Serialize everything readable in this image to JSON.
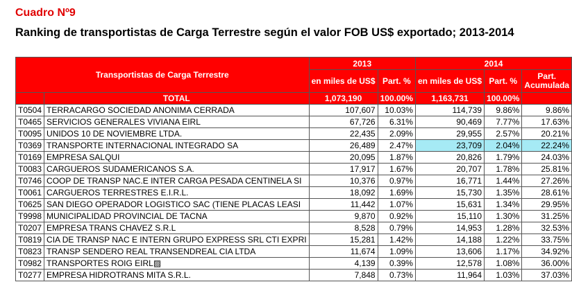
{
  "title": "Cuadro Nº9",
  "subtitle": "Ranking de transportistas de Carga Terrestre según el valor FOB US$ exportado; 2013-2014",
  "header": {
    "col_main": "Transportistas de Carga Terrestre",
    "year1": "2013",
    "year2": "2014",
    "value": "en miles de US$",
    "part": "Part. %",
    "acum": "Part. Acumulada"
  },
  "total": {
    "label": "TOTAL",
    "v2013": "1,073,190",
    "p2013": "100.00%",
    "v2014": "1,163,731",
    "p2014": "100.00%"
  },
  "rows": [
    [
      "T0504",
      "TERRACARGO SOCIEDAD ANONIMA CERRADA",
      "107,607",
      "10.03%",
      "114,739",
      "9.86%",
      "9.86%"
    ],
    [
      "T0465",
      "SERVICIOS GENERALES VIVIANA EIRL",
      "67,726",
      "6.31%",
      "90,469",
      "7.77%",
      "17.63%"
    ],
    [
      "T0095",
      "UNIDOS 10 DE NOVIEMBRE LTDA.",
      "22,435",
      "2.09%",
      "29,955",
      "2.57%",
      "20.21%"
    ],
    [
      "T0369",
      "TRANSPORTE INTERNACIONAL INTEGRADO SA",
      "26,489",
      "2.47%",
      "23,709",
      "2.04%",
      "22.24%"
    ],
    [
      "T0169",
      "EMPRESA SALQUI",
      "20,095",
      "1.87%",
      "20,826",
      "1.79%",
      "24.03%"
    ],
    [
      "T0083",
      "CARGUEROS SUDAMERICANOS S.A.",
      "17,917",
      "1.67%",
      "20,707",
      "1.78%",
      "25.81%"
    ],
    [
      "T0746",
      "COOP DE TRANSP NAC.E INTER CARGA PESADA CENTINELA SI",
      "10,376",
      "0.97%",
      "16,771",
      "1.44%",
      "27.26%"
    ],
    [
      "T0061",
      "CARGUEROS TERRESTRES E.I.R.L.",
      "18,092",
      "1.69%",
      "15,730",
      "1.35%",
      "28.61%"
    ],
    [
      "T0625",
      "SAN DIEGO OPERADOR LOGISTICO SAC (TIENE PLACAS LEASI",
      "11,442",
      "1.07%",
      "15,631",
      "1.34%",
      "29.95%"
    ],
    [
      "T9998",
      "MUNICIPALIDAD PROVINCIAL DE TACNA",
      "9,870",
      "0.92%",
      "15,110",
      "1.30%",
      "31.25%"
    ],
    [
      "T0207",
      "EMPRESA TRANS CHAVEZ S.R.L",
      "8,528",
      "0.79%",
      "14,953",
      "1.28%",
      "32.53%"
    ],
    [
      "T0819",
      "CIA DE TRANSP NAC E INTERN GRUPO EXPRESS SRL CTI EXPRI",
      "15,281",
      "1.42%",
      "14,188",
      "1.22%",
      "33.75%"
    ],
    [
      "T0823",
      "TRANSP SENDERO REAL TRANSENDREAL CIA LTDA",
      "11,674",
      "1.09%",
      "13,606",
      "1.17%",
      "34.92%"
    ],
    [
      "T0982",
      "TRANSPORTES ROIG EIRL▨",
      "4,139",
      "0.39%",
      "12,578",
      "1.08%",
      "36.00%"
    ],
    [
      "T0277",
      "EMPRESA HIDROTRANS MITA S.R.L.",
      "7,848",
      "0.73%",
      "11,964",
      "1.03%",
      "37.03%"
    ]
  ]
}
